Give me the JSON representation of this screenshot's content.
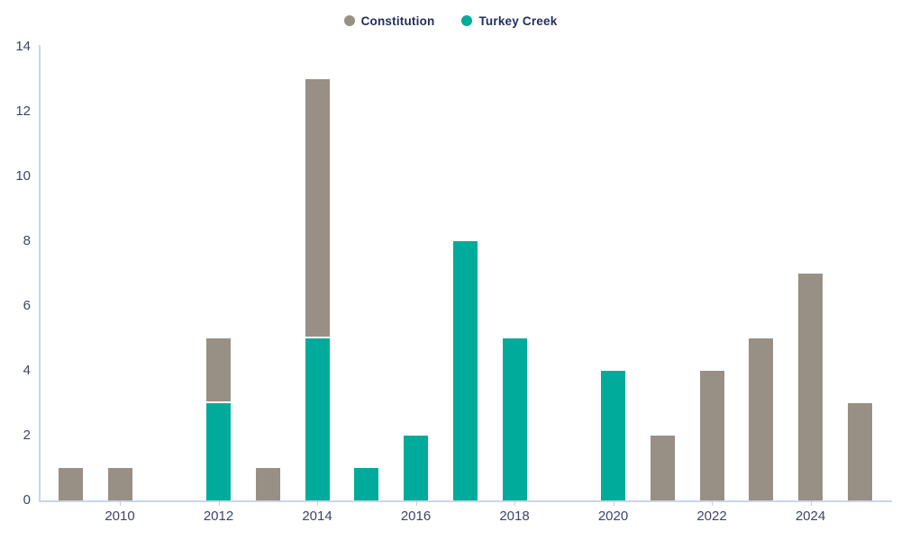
{
  "colors": {
    "axis": "#cbd5e9",
    "tick": "#c2cce2",
    "axis_label": "#3c4568",
    "legend_text": "#252e5a",
    "constitution": "#988f85",
    "turkey_creek": "#00ab9b",
    "background": "#ffffff"
  },
  "chart_data": {
    "type": "bar",
    "stacked": true,
    "title": "",
    "xlabel": "",
    "ylabel": "",
    "categories": [
      "2009",
      "2010",
      "2011",
      "2012",
      "2013",
      "2014",
      "2015",
      "2016",
      "2017",
      "2018",
      "2019",
      "2020",
      "2021",
      "2022",
      "2023",
      "2024",
      "2025"
    ],
    "series": [
      {
        "name": "Turkey Creek",
        "color": "#00ab9b",
        "values": [
          0,
          0,
          0,
          3,
          0,
          5,
          1,
          2,
          8,
          5,
          0,
          4,
          0,
          0,
          0,
          0,
          0
        ]
      },
      {
        "name": "Constitution",
        "color": "#988f85",
        "values": [
          1,
          1,
          0,
          2,
          1,
          8,
          0,
          0,
          0,
          0,
          0,
          0,
          2,
          4,
          5,
          7,
          3
        ]
      }
    ],
    "totals_by_year": [
      1,
      1,
      0,
      5,
      1,
      13,
      1,
      2,
      8,
      5,
      0,
      4,
      2,
      4,
      5,
      7,
      3
    ],
    "ylim": [
      0,
      14
    ],
    "yticks": [
      0,
      2,
      4,
      6,
      8,
      10,
      12,
      14
    ],
    "xtick_labels": [
      "2010",
      "2012",
      "2014",
      "2016",
      "2018",
      "2020",
      "2022",
      "2024"
    ],
    "grid": false,
    "legend": {
      "position": "top-center",
      "items": [
        {
          "label": "Constitution",
          "color": "#988f85"
        },
        {
          "label": "Turkey Creek",
          "color": "#00ab9b"
        }
      ]
    }
  }
}
